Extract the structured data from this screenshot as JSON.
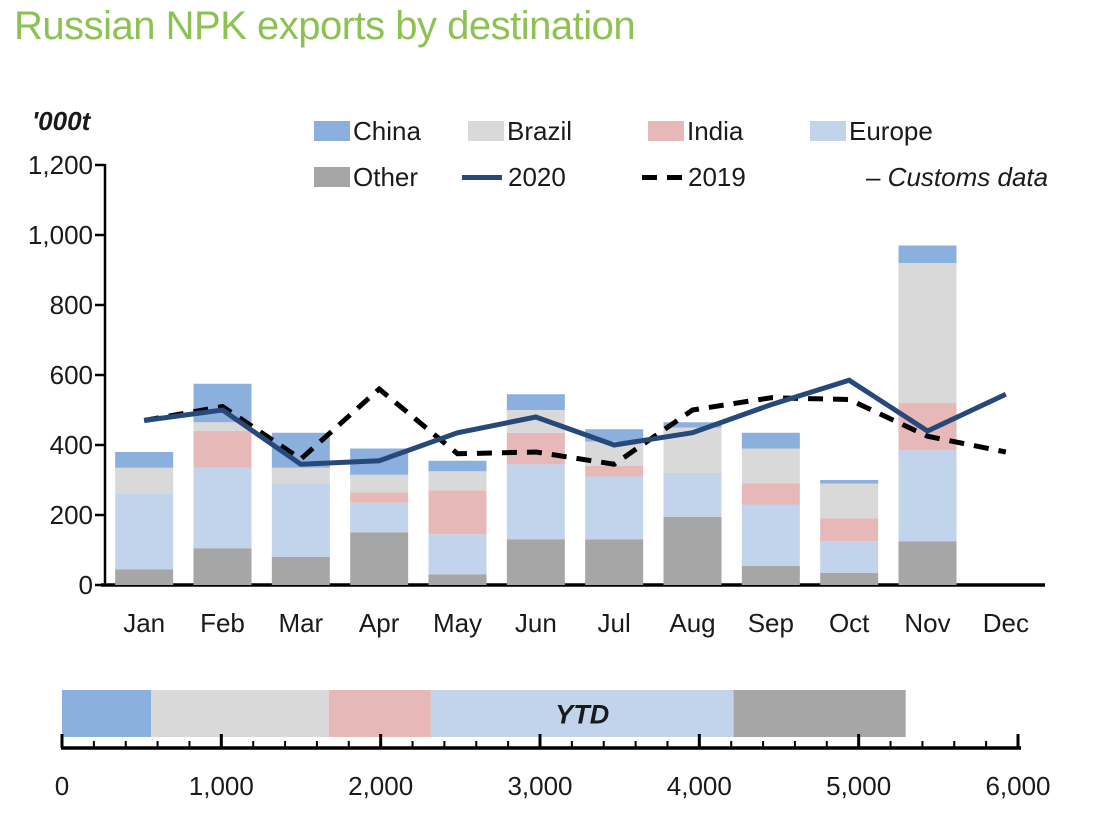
{
  "title": "Russian NPK exports by destination",
  "y_axis_unit": "'000t",
  "source_note": "– Customs data",
  "colors": {
    "title_green": "#8dc152",
    "china": "#8cb0dd",
    "brazil": "#d9d9d9",
    "india": "#e6b9b8",
    "europe": "#c2d4eb",
    "other": "#a6a6a6",
    "line_2020": "#27497a",
    "line_2019": "#000000",
    "axis": "#000000",
    "text": "#1a1a1a"
  },
  "legend": {
    "items": [
      {
        "label": "China",
        "kind": "box",
        "color": "#8cb0dd"
      },
      {
        "label": "Brazil",
        "kind": "box",
        "color": "#d9d9d9"
      },
      {
        "label": "India",
        "kind": "box",
        "color": "#e6b9b8"
      },
      {
        "label": "Europe",
        "kind": "box",
        "color": "#c2d4eb"
      },
      {
        "label": "Other",
        "kind": "box",
        "color": "#a6a6a6"
      },
      {
        "label": "2020",
        "kind": "line",
        "color": "#27497a"
      },
      {
        "label": "2019",
        "kind": "dash",
        "color": "#000000"
      }
    ]
  },
  "chart_data": [
    {
      "type": "bar",
      "subtype": "stacked-bars-with-lines",
      "title": "Russian NPK exports by destination",
      "xlabel": "",
      "ylabel": "'000t",
      "ylim": [
        0,
        1200
      ],
      "yticks": [
        0,
        200,
        400,
        600,
        800,
        1000,
        1200
      ],
      "grid": false,
      "legend_position": "top",
      "categories": [
        "Jan",
        "Feb",
        "Mar",
        "Apr",
        "May",
        "Jun",
        "Jul",
        "Aug",
        "Sep",
        "Oct",
        "Nov",
        "Dec"
      ],
      "stack_order_bottom_to_top": [
        "Other",
        "Europe",
        "India",
        "Brazil",
        "China"
      ],
      "series": [
        {
          "name": "Other",
          "color": "#a6a6a6",
          "values": [
            45,
            105,
            80,
            150,
            30,
            130,
            130,
            195,
            55,
            35,
            125,
            0
          ]
        },
        {
          "name": "Europe",
          "color": "#c2d4eb",
          "values": [
            215,
            230,
            210,
            85,
            115,
            215,
            180,
            125,
            175,
            90,
            260,
            0
          ]
        },
        {
          "name": "India",
          "color": "#e6b9b8",
          "values": [
            0,
            105,
            0,
            30,
            125,
            90,
            30,
            0,
            60,
            65,
            135,
            0
          ]
        },
        {
          "name": "Brazil",
          "color": "#d9d9d9",
          "values": [
            75,
            25,
            45,
            50,
            55,
            65,
            70,
            130,
            100,
            100,
            400,
            0
          ]
        },
        {
          "name": "China",
          "color": "#8cb0dd",
          "values": [
            45,
            110,
            100,
            75,
            30,
            45,
            35,
            15,
            45,
            10,
            50,
            0
          ]
        }
      ],
      "lines": [
        {
          "name": "2020",
          "style": "solid",
          "color": "#27497a",
          "values": [
            470,
            500,
            345,
            355,
            435,
            480,
            400,
            435,
            515,
            585,
            440,
            545
          ]
        },
        {
          "name": "2019",
          "style": "dashed",
          "color": "#000000",
          "values": [
            470,
            510,
            360,
            560,
            375,
            380,
            345,
            500,
            535,
            530,
            425,
            380
          ]
        }
      ]
    },
    {
      "type": "bar",
      "subtype": "horizontal-stacked-single",
      "label": "YTD",
      "xlim": [
        0,
        6000
      ],
      "xticks": [
        0,
        1000,
        2000,
        3000,
        4000,
        5000,
        6000
      ],
      "minor_tick_interval": 200,
      "segments": [
        {
          "name": "China",
          "color": "#8cb0dd",
          "value": 560
        },
        {
          "name": "Brazil",
          "color": "#d9d9d9",
          "value": 1115
        },
        {
          "name": "India",
          "color": "#e6b9b8",
          "value": 640
        },
        {
          "name": "Europe",
          "color": "#c2d4eb",
          "value": 1900
        },
        {
          "name": "Other",
          "color": "#a6a6a6",
          "value": 1080
        }
      ],
      "total": 5295
    }
  ]
}
